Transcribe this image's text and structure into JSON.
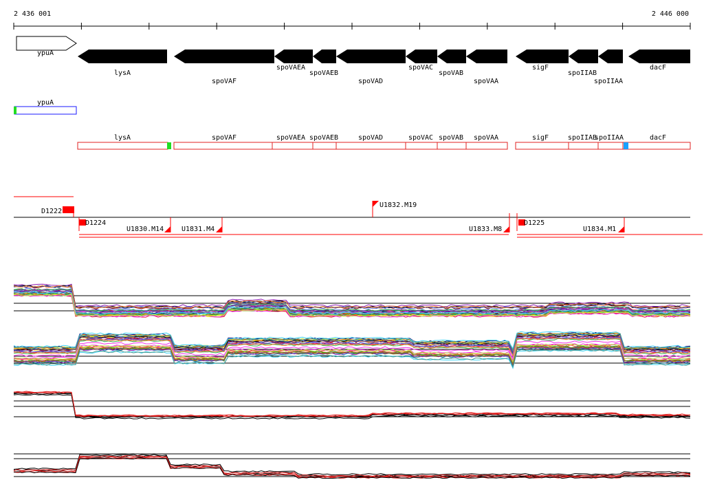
{
  "ruler": {
    "start_label": "2 436 001",
    "end_label": "2 446 000"
  },
  "annotated_genes": [
    {
      "name": "ypuA",
      "strand": "+"
    },
    {
      "name": "lysA",
      "strand": "-"
    },
    {
      "name": "spoVAF",
      "strand": "-"
    },
    {
      "name": "spoVAEA",
      "strand": "-"
    },
    {
      "name": "spoVAEB",
      "strand": "-"
    },
    {
      "name": "spoVAD",
      "strand": "-"
    },
    {
      "name": "spoVAC",
      "strand": "-"
    },
    {
      "name": "spoVAB",
      "strand": "-"
    },
    {
      "name": "spoVAA",
      "strand": "-"
    },
    {
      "name": "sigF",
      "strand": "-"
    },
    {
      "name": "spoIIAB",
      "strand": "-"
    },
    {
      "name": "spoIIAA",
      "strand": "-"
    },
    {
      "name": "dacF",
      "strand": "-"
    }
  ],
  "forward_transcripts": [
    {
      "name": "ypuA"
    }
  ],
  "reverse_transcripts": [
    {
      "name": "lysA"
    },
    {
      "name": "spoVAF"
    },
    {
      "name": "spoVAEA"
    },
    {
      "name": "spoVAEB"
    },
    {
      "name": "spoVAD"
    },
    {
      "name": "spoVAC"
    },
    {
      "name": "spoVAB"
    },
    {
      "name": "spoVAA"
    },
    {
      "name": "sigF"
    },
    {
      "name": "spoIIAB"
    },
    {
      "name": "spoIIAA"
    },
    {
      "name": "dacF"
    }
  ],
  "segments": [
    {
      "label": "D1222",
      "strand": "+"
    },
    {
      "label": "U1832.M19",
      "strand": "+"
    },
    {
      "label": "D1224",
      "strand": "-"
    },
    {
      "label": "U1830.M14",
      "strand": "-"
    },
    {
      "label": "U1831.M4",
      "strand": "-"
    },
    {
      "label": "U1833.M8",
      "strand": "-"
    },
    {
      "label": "D1225",
      "strand": "-"
    },
    {
      "label": "U1834.M1",
      "strand": "-"
    }
  ],
  "colors": {
    "gene_arrow": "#000000",
    "transcript_forward": "#1a1aff",
    "transcript_reverse": "#e02020",
    "start_marker": "#22dd22",
    "end_marker": "#1aa0ff",
    "segment": "#ff0000",
    "panel_line": "#000000"
  }
}
